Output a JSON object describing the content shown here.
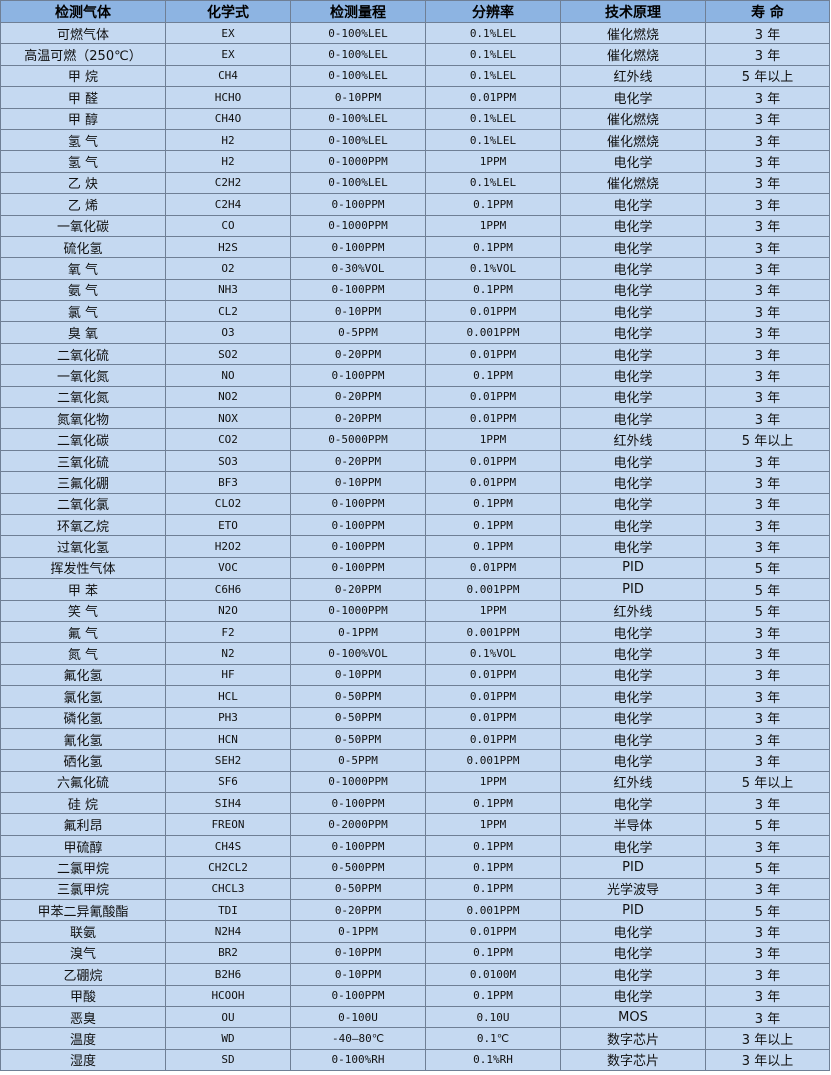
{
  "table": {
    "headers": [
      "检测气体",
      "化学式",
      "检测量程",
      "分辨率",
      "技术原理",
      "寿 命"
    ],
    "rows": [
      [
        "可燃气体",
        "EX",
        "0-100%LEL",
        "0.1%LEL",
        "催化燃烧",
        "3 年"
      ],
      [
        "高温可燃（250℃）",
        "EX",
        "0-100%LEL",
        "0.1%LEL",
        "催化燃烧",
        "3 年"
      ],
      [
        "甲 烷",
        "CH4",
        "0-100%LEL",
        "0.1%LEL",
        "红外线",
        "5 年以上"
      ],
      [
        "甲 醛",
        "HCHO",
        "0-10PPM",
        "0.01PPM",
        "电化学",
        "3 年"
      ],
      [
        "甲 醇",
        "CH4O",
        "0-100%LEL",
        "0.1%LEL",
        "催化燃烧",
        "3 年"
      ],
      [
        "氢 气",
        "H2",
        "0-100%LEL",
        "0.1%LEL",
        "催化燃烧",
        "3 年"
      ],
      [
        "氢 气",
        "H2",
        "0-1000PPM",
        "1PPM",
        "电化学",
        "3 年"
      ],
      [
        "乙 炔",
        "C2H2",
        "0-100%LEL",
        "0.1%LEL",
        "催化燃烧",
        "3 年"
      ],
      [
        "乙 烯",
        "C2H4",
        "0-100PPM",
        "0.1PPM",
        "电化学",
        "3 年"
      ],
      [
        "一氧化碳",
        "CO",
        "0-1000PPM",
        "1PPM",
        "电化学",
        "3 年"
      ],
      [
        "硫化氢",
        "H2S",
        "0-100PPM",
        "0.1PPM",
        "电化学",
        "3 年"
      ],
      [
        "氧 气",
        "O2",
        "0-30%VOL",
        "0.1%VOL",
        "电化学",
        "3 年"
      ],
      [
        "氨 气",
        "NH3",
        "0-100PPM",
        "0.1PPM",
        "电化学",
        "3 年"
      ],
      [
        "氯 气",
        "CL2",
        "0-10PPM",
        "0.01PPM",
        "电化学",
        "3 年"
      ],
      [
        "臭 氧",
        "O3",
        "0-5PPM",
        "0.001PPM",
        "电化学",
        "3 年"
      ],
      [
        "二氧化硫",
        "SO2",
        "0-20PPM",
        "0.01PPM",
        "电化学",
        "3 年"
      ],
      [
        "一氧化氮",
        "NO",
        "0-100PPM",
        "0.1PPM",
        "电化学",
        "3 年"
      ],
      [
        "二氧化氮",
        "NO2",
        "0-20PPM",
        "0.01PPM",
        "电化学",
        "3 年"
      ],
      [
        "氮氧化物",
        "NOX",
        "0-20PPM",
        "0.01PPM",
        "电化学",
        "3 年"
      ],
      [
        "二氧化碳",
        "CO2",
        "0-5000PPM",
        "1PPM",
        "红外线",
        "5 年以上"
      ],
      [
        "三氧化硫",
        "SO3",
        "0-20PPM",
        "0.01PPM",
        "电化学",
        "3 年"
      ],
      [
        "三氟化硼",
        "BF3",
        "0-10PPM",
        "0.01PPM",
        "电化学",
        "3 年"
      ],
      [
        "二氧化氯",
        "CLO2",
        "0-100PPM",
        "0.1PPM",
        "电化学",
        "3 年"
      ],
      [
        "环氧乙烷",
        "ETO",
        "0-100PPM",
        "0.1PPM",
        "电化学",
        "3 年"
      ],
      [
        "过氧化氢",
        "H2O2",
        "0-100PPM",
        "0.1PPM",
        "电化学",
        "3 年"
      ],
      [
        "挥发性气体",
        "VOC",
        "0-100PPM",
        "0.01PPM",
        "PID",
        "5 年"
      ],
      [
        "甲 苯",
        "C6H6",
        "0-20PPM",
        "0.001PPM",
        "PID",
        "5 年"
      ],
      [
        "笑 气",
        "N2O",
        "0-1000PPM",
        "1PPM",
        "红外线",
        "5 年"
      ],
      [
        "氟 气",
        "F2",
        "0-1PPM",
        "0.001PPM",
        "电化学",
        "3 年"
      ],
      [
        "氮 气",
        "N2",
        "0-100%VOL",
        "0.1%VOL",
        "电化学",
        "3 年"
      ],
      [
        "氟化氢",
        "HF",
        "0-10PPM",
        "0.01PPM",
        "电化学",
        "3 年"
      ],
      [
        "氯化氢",
        "HCL",
        "0-50PPM",
        "0.01PPM",
        "电化学",
        "3 年"
      ],
      [
        "磷化氢",
        "PH3",
        "0-50PPM",
        "0.01PPM",
        "电化学",
        "3 年"
      ],
      [
        "氰化氢",
        "HCN",
        "0-50PPM",
        "0.01PPM",
        "电化学",
        "3 年"
      ],
      [
        "硒化氢",
        "SEH2",
        "0-5PPM",
        "0.001PPM",
        "电化学",
        "3 年"
      ],
      [
        "六氟化硫",
        "SF6",
        "0-1000PPM",
        "1PPM",
        "红外线",
        "5 年以上"
      ],
      [
        "硅 烷",
        "SIH4",
        "0-100PPM",
        "0.1PPM",
        "电化学",
        "3 年"
      ],
      [
        "氟利昂",
        "FREON",
        "0-2000PPM",
        "1PPM",
        "半导体",
        "5 年"
      ],
      [
        "甲硫醇",
        "CH4S",
        "0-100PPM",
        "0.1PPM",
        "电化学",
        "3 年"
      ],
      [
        "二氯甲烷",
        "CH2CL2",
        "0-500PPM",
        "0.1PPM",
        "PID",
        "5 年"
      ],
      [
        "三氯甲烷",
        "CHCL3",
        "0-50PPM",
        "0.1PPM",
        "光学波导",
        "3 年"
      ],
      [
        "甲苯二异氰酸酯",
        "TDI",
        "0-20PPM",
        "0.001PPM",
        "PID",
        "5 年"
      ],
      [
        "联氨",
        "N2H4",
        "0-1PPM",
        "0.01PPM",
        "电化学",
        "3 年"
      ],
      [
        "溴气",
        "BR2",
        "0-10PPM",
        "0.1PPM",
        "电化学",
        "3 年"
      ],
      [
        "乙硼烷",
        "B2H6",
        "0-10PPM",
        "0.0100M",
        "电化学",
        "3 年"
      ],
      [
        "甲酸",
        "HCOOH",
        "0-100PPM",
        "0.1PPM",
        "电化学",
        "3 年"
      ],
      [
        "恶臭",
        "OU",
        "0-100U",
        "0.10U",
        "MOS",
        "3 年"
      ],
      [
        "温度",
        "WD",
        "-40—80℃",
        "0.1℃",
        "数字芯片",
        "3 年以上"
      ],
      [
        "湿度",
        "SD",
        "0-100%RH",
        "0.1%RH",
        "数字芯片",
        "3 年以上"
      ]
    ]
  },
  "colors": {
    "header_bg": "#8db4e2",
    "row_bg": "#c5d9f1",
    "border": "#6f7f95"
  }
}
